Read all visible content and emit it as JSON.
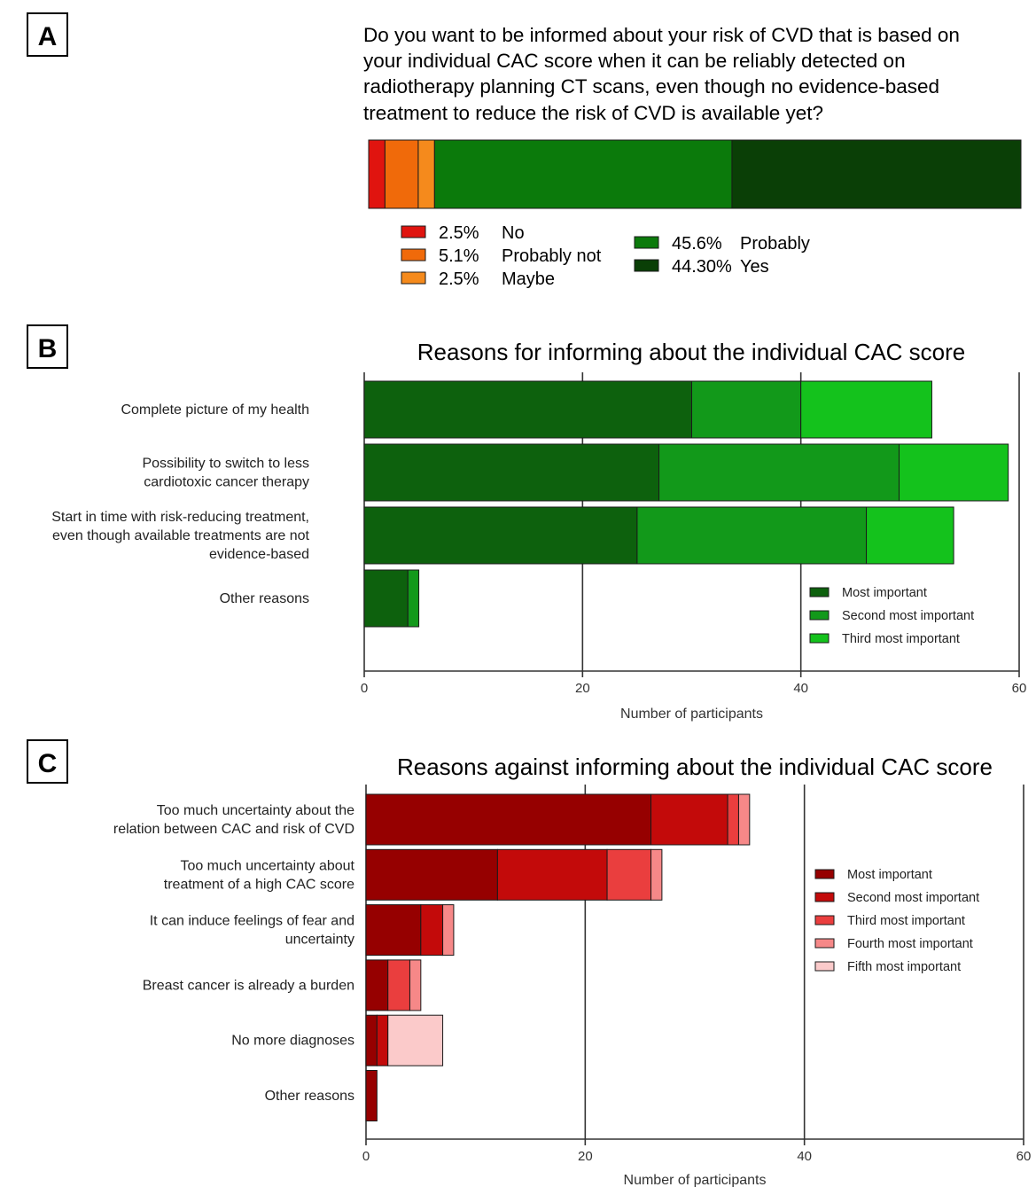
{
  "panels": {
    "a": {
      "letter": "A",
      "question": [
        "Do you want to be informed about your risk of CVD that is based on",
        "your individual CAC score when it can be reliably detected on",
        "radiotherapy planning CT scans, even though no evidence-based",
        "treatment to reduce the risk of CVD is available yet?"
      ]
    },
    "b": {
      "letter": "B"
    },
    "c": {
      "letter": "C"
    }
  },
  "chart_data": [
    {
      "type": "bar",
      "orientation": "horizontal-stacked-100",
      "categories": [
        "No",
        "Probably not",
        "Maybe",
        "Probably",
        "Yes"
      ],
      "values": [
        2.5,
        5.1,
        2.5,
        45.6,
        44.3
      ],
      "legend_labels": [
        "2.5%",
        "5.1%",
        "2.5%",
        "45.6%",
        "44.30%"
      ],
      "colors": [
        "#e0140f",
        "#f06a0a",
        "#f58a1c",
        "#0b7a0b",
        "#0a3f06"
      ],
      "legend": "below"
    },
    {
      "type": "bar",
      "orientation": "horizontal-stacked",
      "title": "Reasons for informing about the individual CAC score",
      "xlabel": "Number of participants",
      "xlim": [
        0,
        60
      ],
      "xticks": [
        0,
        20,
        40,
        60
      ],
      "grid": true,
      "legend": "bottom-right",
      "categories": [
        [
          "Complete picture of my health"
        ],
        [
          "Possibility to switch to less",
          "cardiotoxic cancer therapy"
        ],
        [
          "Start in time with risk-reducing treatment,",
          "even though available treatments are not",
          "evidence-based"
        ],
        [
          "Other reasons"
        ]
      ],
      "series": [
        {
          "name": "Most important",
          "color": "#0d610d",
          "values": [
            30,
            27,
            25,
            4
          ]
        },
        {
          "name": "Second most important",
          "color": "#12991a",
          "values": [
            10,
            22,
            21,
            1
          ]
        },
        {
          "name": "Third most important",
          "color": "#14c21c",
          "values": [
            12,
            10,
            8,
            0
          ]
        }
      ]
    },
    {
      "type": "bar",
      "orientation": "horizontal-stacked",
      "title": "Reasons against informing about the individual CAC score",
      "xlabel": "Number of participants",
      "xlim": [
        0,
        60
      ],
      "xticks": [
        0,
        20,
        40,
        60
      ],
      "grid": true,
      "legend": "right",
      "categories": [
        [
          "Too much uncertainty about the",
          "relation between CAC and risk of CVD"
        ],
        [
          "Too much uncertainty about",
          "treatment of a high CAC score"
        ],
        [
          "It can induce feelings of fear and",
          "uncertainty"
        ],
        [
          "Breast cancer is already a burden"
        ],
        [
          "No more diagnoses"
        ],
        [
          "Other reasons"
        ]
      ],
      "series": [
        {
          "name": "Most important",
          "color": "#960000",
          "values": [
            26,
            12,
            5,
            2,
            1,
            1
          ]
        },
        {
          "name": "Second most important",
          "color": "#c30a0a",
          "values": [
            7,
            10,
            2,
            0,
            1,
            0
          ]
        },
        {
          "name": "Third most important",
          "color": "#ea3e3e",
          "values": [
            1,
            4,
            0,
            2,
            0,
            0
          ]
        },
        {
          "name": "Fourth most important",
          "color": "#f68888",
          "values": [
            1,
            1,
            1,
            1,
            0,
            0
          ]
        },
        {
          "name": "Fifth most important",
          "color": "#fbcaca",
          "values": [
            0,
            0,
            0,
            0,
            5,
            0
          ]
        }
      ]
    }
  ]
}
